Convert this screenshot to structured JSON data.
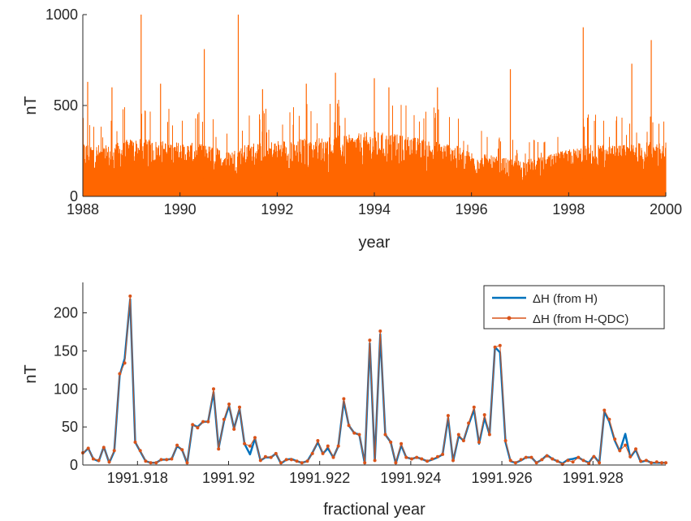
{
  "chart_data": [
    {
      "type": "line",
      "xlabel": "year",
      "ylabel": "nT",
      "xlim": [
        1988,
        2000
      ],
      "ylim": [
        0,
        1000
      ],
      "xticks": [
        1988,
        1990,
        1992,
        1994,
        1996,
        1998,
        2000
      ],
      "xtick_labels": [
        "1988",
        "1990",
        "1992",
        "1994",
        "1996",
        "1998",
        "2000"
      ],
      "yticks": [
        0,
        500,
        1000
      ],
      "ytick_labels": [
        "0",
        "500",
        "1000"
      ],
      "grid": false,
      "series": [
        {
          "color": "#ff6600",
          "envelope_by_year": {
            "x": [
              1988.0,
              1988.5,
              1989.0,
              1989.5,
              1990.0,
              1990.5,
              1991.0,
              1991.5,
              1992.0,
              1992.5,
              1993.0,
              1993.5,
              1994.0,
              1994.5,
              1995.0,
              1995.5,
              1996.0,
              1996.5,
              1997.0,
              1997.5,
              1998.0,
              1998.5,
              1999.0,
              1999.5,
              2000.0
            ],
            "typical_max": [
              300,
              280,
              320,
              310,
              300,
              290,
              250,
              300,
              310,
              320,
              330,
              340,
              360,
              340,
              320,
              300,
              250,
              220,
              200,
              220,
              260,
              290,
              280,
              300,
              300
            ]
          },
          "peaks": [
            {
              "x": 1988.1,
              "y": 630
            },
            {
              "x": 1988.6,
              "y": 600
            },
            {
              "x": 1989.2,
              "y": 1000
            },
            {
              "x": 1989.6,
              "y": 620
            },
            {
              "x": 1990.5,
              "y": 810
            },
            {
              "x": 1991.2,
              "y": 1000
            },
            {
              "x": 1991.7,
              "y": 590
            },
            {
              "x": 1992.6,
              "y": 620
            },
            {
              "x": 1993.2,
              "y": 680
            },
            {
              "x": 1994.0,
              "y": 650
            },
            {
              "x": 1994.3,
              "y": 600
            },
            {
              "x": 1995.3,
              "y": 600
            },
            {
              "x": 1996.8,
              "y": 700
            },
            {
              "x": 1998.3,
              "y": 930
            },
            {
              "x": 1999.3,
              "y": 730
            },
            {
              "x": 1999.7,
              "y": 860
            }
          ]
        }
      ]
    },
    {
      "type": "line",
      "xlabel": "fractional year",
      "ylabel": "nT",
      "xlim": [
        1991.9168,
        1991.9296
      ],
      "ylim": [
        0,
        240
      ],
      "xticks": [
        1991.918,
        1991.92,
        1991.922,
        1991.924,
        1991.926,
        1991.928
      ],
      "xtick_labels": [
        "1991.918",
        "1991.92",
        "1991.922",
        "1991.924",
        "1991.926",
        "1991.928"
      ],
      "yticks": [
        0,
        50,
        100,
        150,
        200
      ],
      "ytick_labels": [
        "0",
        "50",
        "100",
        "150",
        "200"
      ],
      "grid": false,
      "legend_position": "top-right",
      "x": [
        1991.9168,
        1991.91692,
        1991.91703,
        1991.91715,
        1991.91726,
        1991.91738,
        1991.91749,
        1991.91761,
        1991.91772,
        1991.91784,
        1991.91795,
        1991.91806,
        1991.91818,
        1991.91829,
        1991.91841,
        1991.91852,
        1991.91864,
        1991.91875,
        1991.91887,
        1991.91898,
        1991.91909,
        1991.91921,
        1991.91932,
        1991.91944,
        1991.91955,
        1991.91967,
        1991.91978,
        1991.9199,
        1991.92001,
        1991.92012,
        1991.92024,
        1991.92035,
        1991.92047,
        1991.92058,
        1991.9207,
        1991.92081,
        1991.92093,
        1991.92104,
        1991.92115,
        1991.92127,
        1991.92138,
        1991.9215,
        1991.92161,
        1991.92173,
        1991.92184,
        1991.92196,
        1991.92207,
        1991.92218,
        1991.9223,
        1991.92241,
        1991.92253,
        1991.92264,
        1991.92276,
        1991.92287,
        1991.92299,
        1991.9231,
        1991.92321,
        1991.92333,
        1991.92344,
        1991.92356,
        1991.92367,
        1991.92379,
        1991.9239,
        1991.92402,
        1991.92413,
        1991.92424,
        1991.92436,
        1991.92447,
        1991.92459,
        1991.9247,
        1991.92482,
        1991.92493,
        1991.92505,
        1991.92516,
        1991.92527,
        1991.92539,
        1991.9255,
        1991.92562,
        1991.92573,
        1991.92585,
        1991.92596,
        1991.92608,
        1991.92619,
        1991.9263,
        1991.92642,
        1991.92653,
        1991.92665,
        1991.92676,
        1991.92688,
        1991.92699,
        1991.92711,
        1991.92722,
        1991.92733,
        1991.92745,
        1991.92756,
        1991.92768,
        1991.92779,
        1991.92791,
        1991.92802,
        1991.92814,
        1991.92825,
        1991.92836,
        1991.92848,
        1991.92859,
        1991.92871,
        1991.92882,
        1991.92894,
        1991.92905,
        1991.92917,
        1991.92928,
        1991.9294,
        1991.92951,
        1991.9296
      ],
      "series": [
        {
          "name": "ΔH (from H)",
          "color": "#0072bd",
          "values": [
            15,
            22,
            8,
            5,
            24,
            3,
            18,
            118,
            140,
            218,
            30,
            18,
            5,
            3,
            3,
            7,
            7,
            8,
            25,
            20,
            2,
            53,
            50,
            57,
            57,
            96,
            22,
            58,
            78,
            48,
            74,
            28,
            14,
            35,
            6,
            10,
            10,
            15,
            2,
            7,
            8,
            5,
            3,
            5,
            16,
            30,
            15,
            22,
            10,
            25,
            84,
            52,
            42,
            40,
            2,
            160,
            6,
            172,
            40,
            30,
            2,
            26,
            10,
            8,
            10,
            8,
            5,
            7,
            10,
            14,
            62,
            5,
            38,
            32,
            53,
            73,
            28,
            62,
            40,
            155,
            148,
            30,
            5,
            3,
            6,
            10,
            10,
            3,
            7,
            13,
            8,
            5,
            2,
            7,
            8,
            10,
            6,
            3,
            12,
            3,
            70,
            57,
            32,
            18,
            41,
            10,
            20,
            4,
            6,
            3,
            3,
            3,
            3
          ]
        },
        {
          "name": "ΔH (from H-QDC)",
          "color": "#d95319",
          "values": [
            16,
            22,
            8,
            6,
            23,
            4,
            19,
            120,
            134,
            222,
            30,
            19,
            5,
            3,
            3,
            7,
            7,
            8,
            26,
            20,
            3,
            53,
            49,
            57,
            57,
            100,
            21,
            60,
            80,
            47,
            76,
            28,
            25,
            36,
            6,
            11,
            10,
            15,
            3,
            7,
            7,
            5,
            3,
            5,
            15,
            32,
            15,
            25,
            10,
            25,
            87,
            52,
            42,
            40,
            3,
            164,
            6,
            176,
            40,
            30,
            3,
            28,
            10,
            8,
            10,
            8,
            5,
            8,
            11,
            14,
            65,
            6,
            40,
            32,
            55,
            76,
            30,
            66,
            40,
            155,
            157,
            32,
            6,
            3,
            7,
            10,
            10,
            3,
            7,
            12,
            8,
            5,
            1,
            6,
            4,
            10,
            6,
            2,
            11,
            3,
            72,
            60,
            34,
            19,
            26,
            11,
            21,
            5,
            6,
            3,
            4,
            3,
            3
          ]
        }
      ]
    }
  ]
}
